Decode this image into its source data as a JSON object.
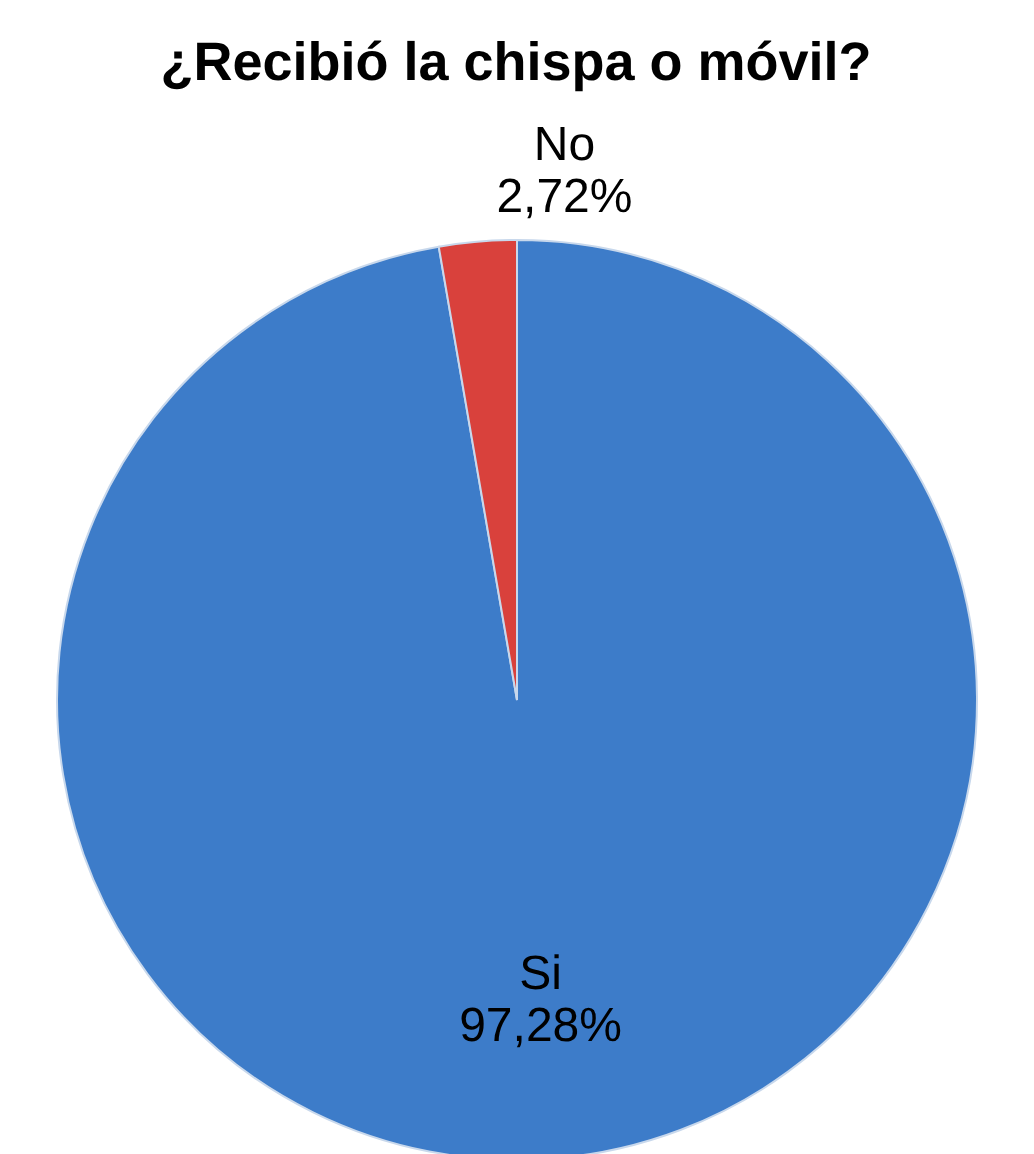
{
  "chart_data": {
    "type": "pie",
    "title": "¿Recibió la chispa o móvil?",
    "categories": [
      "Si",
      "No"
    ],
    "values": [
      97.28,
      2.72
    ],
    "colors": [
      "#3d7cc9",
      "#d9413c"
    ],
    "value_labels": [
      "97,28%",
      "2,72%"
    ],
    "legend": false
  }
}
